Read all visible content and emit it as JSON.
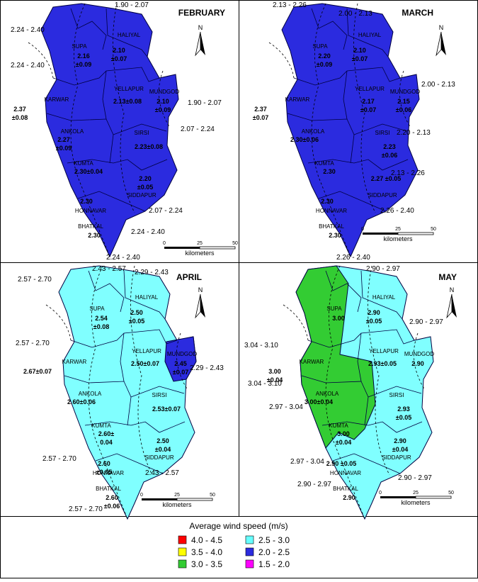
{
  "panels": [
    {
      "month": "FEBRUARY",
      "districts": [
        {
          "name": "SUPA",
          "lines": [
            "2.16",
            "±0.09"
          ]
        },
        {
          "name": "HALIYAL",
          "lines": [
            "2.10",
            "±0.07"
          ]
        },
        {
          "name": "KARWAR",
          "lines": [
            "2.37",
            "±0.08"
          ]
        },
        {
          "name": "YELLAPUR",
          "lines": [
            "2.13±0.08"
          ]
        },
        {
          "name": "MUNDGOD",
          "lines": [
            "2.10",
            "±0.09"
          ]
        },
        {
          "name": "ANKOLA",
          "lines": [
            "2.27",
            "±0.09"
          ]
        },
        {
          "name": "SIRSI",
          "lines": [
            "2.23±0.08"
          ]
        },
        {
          "name": "KUMTA",
          "lines": [
            "2.30±0.04"
          ]
        },
        {
          "name": "SIDDAPUR",
          "lines": [
            "2.20",
            "±0.05"
          ]
        },
        {
          "name": "HONNAVAR",
          "lines": [
            "2.30"
          ]
        },
        {
          "name": "BHATKAL",
          "lines": [
            "2.30"
          ]
        }
      ],
      "isolines": [
        "1.90 - 2.07",
        "2.24 - 2.40",
        "2.24 - 2.40",
        "1.90 - 2.07",
        "2.07 - 2.24",
        "2.07 - 2.24",
        "2.24 - 2.40",
        "2.24 - 2.40"
      ],
      "scale": [
        "0",
        "25",
        "50",
        "kilometers"
      ]
    },
    {
      "month": "MARCH",
      "districts": [
        {
          "name": "SUPA",
          "lines": [
            "2.20",
            "±0.09"
          ]
        },
        {
          "name": "HALIYAL",
          "lines": [
            "2.10",
            "±0.07"
          ]
        },
        {
          "name": "KARWAR",
          "lines": [
            "2.37",
            "±0.07"
          ]
        },
        {
          "name": "YELLAPUR",
          "lines": [
            "2.17",
            "±0.07"
          ]
        },
        {
          "name": "MUNDGOD",
          "lines": [
            "2.15",
            "±0.06"
          ]
        },
        {
          "name": "ANKOLA",
          "lines": [
            "2.30±0.06"
          ]
        },
        {
          "name": "SIRSI",
          "lines": [
            "2.23",
            "±0.06"
          ]
        },
        {
          "name": "KUMTA",
          "lines": [
            "2.30"
          ]
        },
        {
          "name": "SIDDAPUR",
          "lines": [
            "2.27 ±0.05"
          ]
        },
        {
          "name": "HONNAVAR",
          "lines": [
            "2.30"
          ]
        },
        {
          "name": "BHATKAL",
          "lines": [
            "2.30"
          ]
        }
      ],
      "isolines": [
        "2.13 - 2.26",
        "2.00 - 2.13",
        "2.00 - 2.13",
        "2.20 - 2.13",
        "2.13 - 2.26",
        "2.26 - 2.40",
        "2.26 - 2.40"
      ],
      "scale": [
        "0",
        "25",
        "50",
        "kilometers"
      ]
    },
    {
      "month": "APRIL",
      "districts": [
        {
          "name": "SUPA",
          "lines": [
            "2.54",
            "±0.08"
          ]
        },
        {
          "name": "HALIYAL",
          "lines": [
            "2.50",
            "±0.05"
          ]
        },
        {
          "name": "KARWAR",
          "lines": [
            "2.67±0.07"
          ]
        },
        {
          "name": "YELLAPUR",
          "lines": [
            "2.50±0.07"
          ]
        },
        {
          "name": "MUNDGOD",
          "lines": [
            "2.45",
            "±0.07"
          ]
        },
        {
          "name": "ANKOLA",
          "lines": [
            "2.60±0.06"
          ]
        },
        {
          "name": "SIRSI",
          "lines": [
            "2.53±0.07"
          ]
        },
        {
          "name": "KUMTA",
          "lines": [
            "2.60±",
            "0.04"
          ]
        },
        {
          "name": "SIDDAPUR",
          "lines": [
            "2.50",
            "±0.04"
          ]
        },
        {
          "name": "HONNAVAR",
          "lines": [
            "2.60",
            "±0.05"
          ]
        },
        {
          "name": "BHATKAL",
          "lines": [
            "2.60",
            "±0.06"
          ]
        }
      ],
      "isolines": [
        "2.43 - 2.57",
        "2.29 - 2.43",
        "2.57 - 2.70",
        "2.57 - 2.70",
        "2.29 - 2.43",
        "2.57 - 2.70",
        "2.43 - 2.57",
        "2.57 - 2.70"
      ],
      "scale": [
        "0",
        "25",
        "50",
        "kilometers"
      ]
    },
    {
      "month": "MAY",
      "districts": [
        {
          "name": "SUPA",
          "lines": [
            "3.00"
          ]
        },
        {
          "name": "HALIYAL",
          "lines": [
            "2.90",
            "±0.05"
          ]
        },
        {
          "name": "KARWAR",
          "lines": [
            "3.00",
            "±0.04"
          ]
        },
        {
          "name": "YELLAPUR",
          "lines": [
            "2.93±0.05"
          ]
        },
        {
          "name": "MUNDGOD",
          "lines": [
            "2.90"
          ]
        },
        {
          "name": "ANKOLA",
          "lines": [
            "3.00±0.04"
          ]
        },
        {
          "name": "SIRSI",
          "lines": [
            "2.93",
            "±0.05"
          ]
        },
        {
          "name": "KUMTA",
          "lines": [
            "3.00",
            "±0.04"
          ]
        },
        {
          "name": "SIDDAPUR",
          "lines": [
            "2.90",
            "±0.04"
          ]
        },
        {
          "name": "HONNAVAR",
          "lines": [
            "2.90 ±0.05"
          ]
        },
        {
          "name": "BHATKAL",
          "lines": [
            "2.90"
          ]
        }
      ],
      "isolines": [
        "2.90 - 2.97",
        "2.90 - 2.97",
        "3.04 - 3.10",
        "3.04 - 3.10",
        "2.97 - 3.04",
        "2.97 - 3.04",
        "2.90 - 2.97",
        "2.90 - 2.97"
      ],
      "scale": [
        "0",
        "25",
        "50",
        "kilometers"
      ]
    }
  ],
  "north": "N",
  "legend": {
    "title": "Average wind speed (m/s)",
    "items": [
      {
        "label": "4.0 - 4.5",
        "color": "#ff0000"
      },
      {
        "label": "3.5 - 4.0",
        "color": "#ffff00"
      },
      {
        "label": "3.0 - 3.5",
        "color": "#33cc33"
      },
      {
        "label": "2.5 - 3.0",
        "color": "#66ffff"
      },
      {
        "label": "2.0 - 2.5",
        "color": "#2b2bdf"
      },
      {
        "label": "1.5 - 2.0",
        "color": "#ff00ff"
      }
    ]
  }
}
